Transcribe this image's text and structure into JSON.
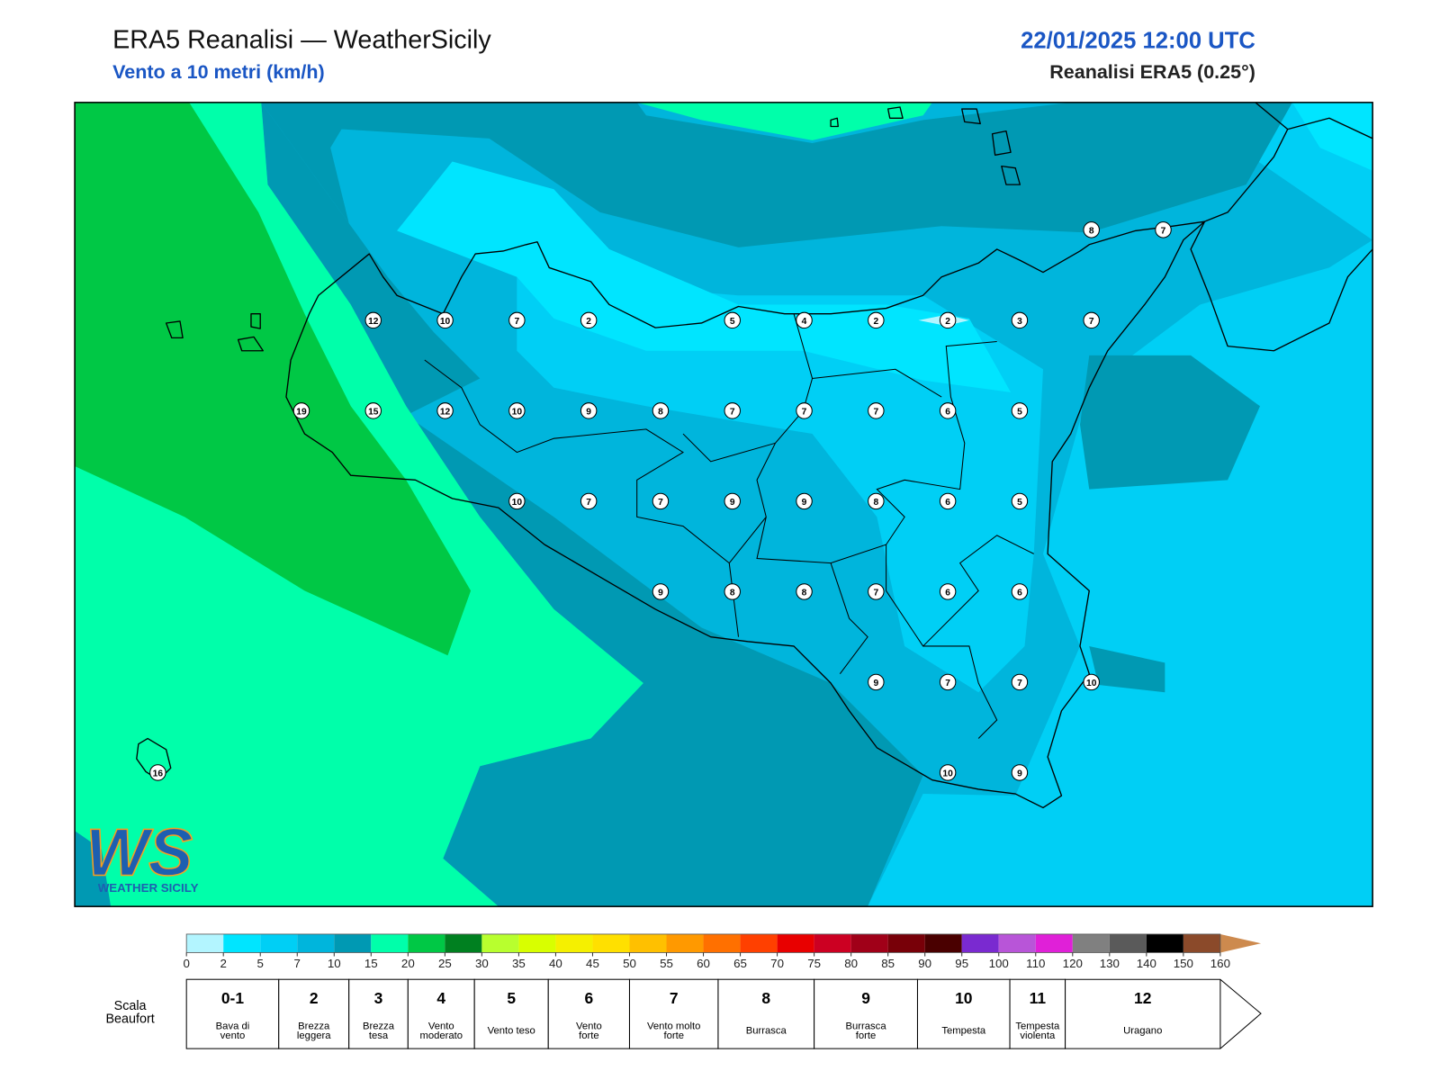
{
  "header": {
    "title": "ERA5 Reanalisi — WeatherSicily",
    "subtitle": "Vento a 10 metri (km/h)",
    "datetime": "22/01/2025 12:00 UTC",
    "source": "Reanalisi ERA5 (0.25°)"
  },
  "wind_grid": {
    "rows": [
      [
        null,
        null,
        null,
        null,
        null,
        null,
        null,
        null,
        null,
        null,
        null,
        null,
        null,
        8,
        7
      ],
      [
        null,
        null,
        null,
        12,
        10,
        7,
        2,
        null,
        5,
        4,
        2,
        2,
        3,
        7,
        null
      ],
      [
        null,
        null,
        19,
        15,
        12,
        10,
        9,
        8,
        7,
        7,
        7,
        6,
        5,
        null,
        null
      ],
      [
        null,
        null,
        null,
        null,
        null,
        10,
        7,
        7,
        9,
        9,
        8,
        6,
        5,
        null,
        null
      ],
      [
        null,
        null,
        null,
        null,
        null,
        null,
        null,
        9,
        8,
        8,
        7,
        6,
        6,
        null,
        null
      ],
      [
        null,
        null,
        null,
        null,
        null,
        null,
        null,
        null,
        null,
        null,
        9,
        7,
        7,
        10,
        null
      ],
      [
        16,
        null,
        null,
        null,
        null,
        null,
        null,
        null,
        null,
        null,
        null,
        10,
        9,
        null,
        null
      ]
    ]
  },
  "logo": {
    "mark": "WS",
    "name": "WEATHER SICILY"
  },
  "colorbar": {
    "ticks": [
      0,
      2,
      5,
      7,
      10,
      15,
      20,
      25,
      30,
      35,
      40,
      45,
      50,
      55,
      60,
      65,
      70,
      75,
      80,
      85,
      90,
      95,
      100,
      110,
      120,
      130,
      140,
      150,
      160
    ],
    "colors": [
      "#b3f5ff",
      "#00e5ff",
      "#00cff5",
      "#00b5dc",
      "#0099b3",
      "#00ffaa",
      "#00c845",
      "#008020",
      "#b8ff2e",
      "#d8ff00",
      "#f5f000",
      "#ffe000",
      "#ffc000",
      "#ff9900",
      "#ff7000",
      "#ff4000",
      "#e80000",
      "#cc0022",
      "#a00018",
      "#780008",
      "#4a0000",
      "#7a2ad0",
      "#b855d8",
      "#e020d8",
      "#808080",
      "#5a5a5a",
      "#000000",
      "#8b4a2a"
    ],
    "over_color": "#cd8a4e"
  },
  "beaufort": {
    "title": [
      "Scala",
      "Beaufort"
    ],
    "scale": [
      {
        "force": "0-1",
        "from": 0,
        "label": [
          "Bava di",
          "vento"
        ]
      },
      {
        "force": "2",
        "from": 6,
        "label": [
          "Brezza",
          "leggera"
        ]
      },
      {
        "force": "3",
        "from": 12,
        "label": [
          "Brezza",
          "tesa"
        ]
      },
      {
        "force": "4",
        "from": 20,
        "label": [
          "Vento",
          "moderato"
        ]
      },
      {
        "force": "5",
        "from": 29,
        "label": [
          "Vento teso"
        ]
      },
      {
        "force": "6",
        "from": 39,
        "label": [
          "Vento",
          "forte"
        ]
      },
      {
        "force": "7",
        "from": 50,
        "label": [
          "Vento molto",
          "forte"
        ]
      },
      {
        "force": "8",
        "from": 62,
        "label": [
          "Burrasca"
        ]
      },
      {
        "force": "9",
        "from": 75,
        "label": [
          "Burrasca",
          "forte"
        ]
      },
      {
        "force": "10",
        "from": 89,
        "label": [
          "Tempesta"
        ]
      },
      {
        "force": "11",
        "from": 103,
        "label": [
          "Tempesta",
          "violenta"
        ]
      },
      {
        "force": "12",
        "from": 118,
        "label": [
          "Uragano"
        ]
      }
    ]
  }
}
